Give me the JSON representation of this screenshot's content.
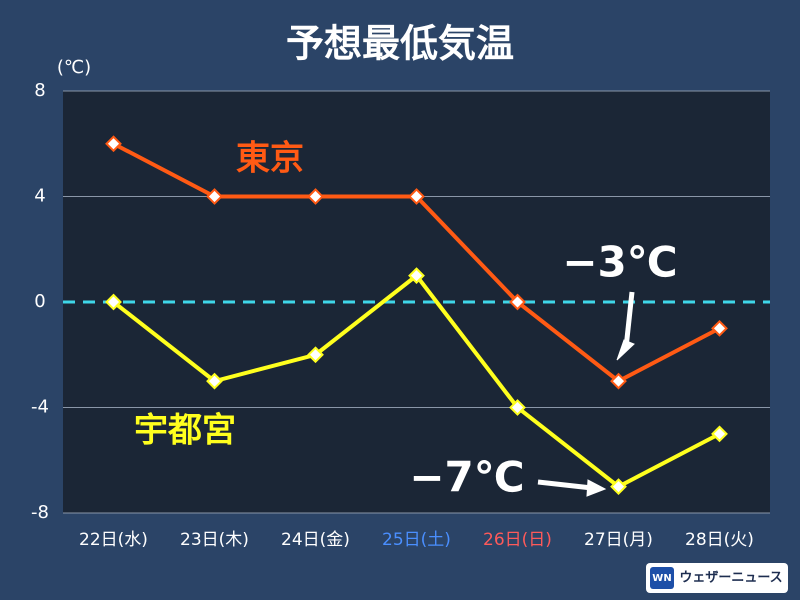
{
  "chart_data": {
    "type": "line",
    "title": "予想最低気温",
    "y_unit_label": "(℃)",
    "categories": [
      "22日(水)",
      "23日(木)",
      "24日(金)",
      "25日(土)",
      "26日(日)",
      "27日(月)",
      "28日(火)"
    ],
    "category_colors": [
      "#ffffff",
      "#ffffff",
      "#ffffff",
      "#4a8fff",
      "#ff5a5a",
      "#ffffff",
      "#ffffff"
    ],
    "series": [
      {
        "name": "東京",
        "color": "#ff5a14",
        "values": [
          6,
          4,
          4,
          4,
          0,
          -3,
          -1
        ]
      },
      {
        "name": "宇都宮",
        "color": "#ffff1e",
        "values": [
          0,
          -3,
          -2,
          1,
          -4,
          -7,
          -5
        ]
      }
    ],
    "ylim": [
      -8,
      8
    ],
    "yticks": [
      8,
      4,
      0,
      -4,
      -8
    ],
    "grid": true,
    "annotations": [
      "−3℃",
      "−7℃"
    ],
    "source": "ウェザーニュース"
  }
}
